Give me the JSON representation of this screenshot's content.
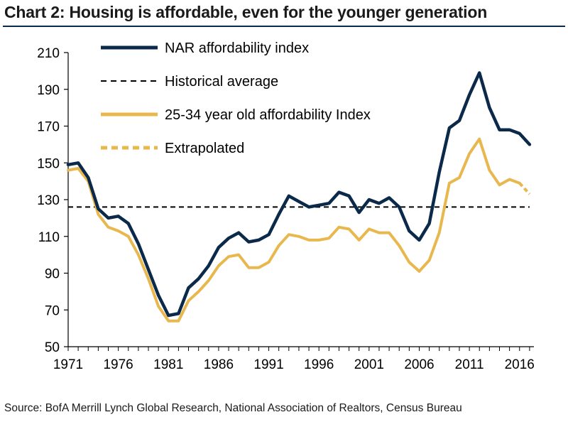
{
  "title": "Chart 2: Housing is affordable, even for the younger generation",
  "source": "Source: BofA Merrill Lynch Global Research, National Association of Realtors, Census Bureau",
  "colors": {
    "nar": "#0b2a4a",
    "young": "#e8b84f",
    "average": "#000000",
    "axis": "#000000"
  },
  "chart_data": {
    "type": "line",
    "xlabel": "",
    "ylabel": "",
    "xlim": [
      1971,
      2018
    ],
    "ylim": [
      50,
      210
    ],
    "yticks": [
      210,
      190,
      170,
      150,
      130,
      110,
      90,
      70,
      50
    ],
    "xticks": [
      1971,
      1976,
      1981,
      1986,
      1991,
      1996,
      2001,
      2006,
      2011,
      2016
    ],
    "grid": false,
    "legend_position": "top-left",
    "legend": [
      {
        "key": "nar",
        "label": "NAR affordability index",
        "style": "solid"
      },
      {
        "key": "average",
        "label": "Historical average",
        "style": "dashed"
      },
      {
        "key": "young",
        "label": "25-34 year old affordability Index",
        "style": "solid"
      },
      {
        "key": "extrapolated",
        "label": "Extrapolated",
        "style": "dashed"
      }
    ],
    "series": [
      {
        "name": "NAR affordability index",
        "key": "nar",
        "x": [
          1971,
          1972,
          1973,
          1974,
          1975,
          1976,
          1977,
          1978,
          1979,
          1980,
          1981,
          1982,
          1983,
          1984,
          1985,
          1986,
          1987,
          1988,
          1989,
          1990,
          1991,
          1992,
          1993,
          1994,
          1995,
          1996,
          1997,
          1998,
          1999,
          2000,
          2001,
          2002,
          2003,
          2004,
          2005,
          2006,
          2007,
          2008,
          2009,
          2010,
          2011,
          2012,
          2013,
          2014,
          2015,
          2016,
          2017
        ],
        "y": [
          149,
          150,
          142,
          125,
          120,
          121,
          117,
          106,
          92,
          78,
          67,
          68,
          82,
          87,
          94,
          104,
          109,
          112,
          107,
          108,
          111,
          122,
          132,
          129,
          126,
          127,
          128,
          134,
          132,
          123,
          130,
          128,
          131,
          126,
          113,
          108,
          117,
          145,
          169,
          173,
          187,
          199,
          180,
          168,
          168,
          166,
          160
        ]
      },
      {
        "name": "25-34 year old affordability Index",
        "key": "young",
        "x": [
          1971,
          1972,
          1973,
          1974,
          1975,
          1976,
          1977,
          1978,
          1979,
          1980,
          1981,
          1982,
          1983,
          1984,
          1985,
          1986,
          1987,
          1988,
          1989,
          1990,
          1991,
          1992,
          1993,
          1994,
          1995,
          1996,
          1997,
          1998,
          1999,
          2000,
          2001,
          2002,
          2003,
          2004,
          2005,
          2006,
          2007,
          2008,
          2009,
          2010,
          2011,
          2012,
          2013,
          2014,
          2015,
          2016
        ],
        "y": [
          146,
          147,
          140,
          122,
          115,
          113,
          110,
          100,
          87,
          72,
          64,
          64,
          75,
          80,
          86,
          94,
          99,
          100,
          93,
          93,
          96,
          105,
          111,
          110,
          108,
          108,
          109,
          115,
          114,
          108,
          114,
          112,
          112,
          105,
          96,
          91,
          97,
          112,
          139,
          142,
          155,
          163,
          146,
          138,
          141,
          139
        ]
      },
      {
        "name": "Extrapolated",
        "key": "extrapolated",
        "x": [
          2016,
          2017
        ],
        "y": [
          139,
          133
        ]
      },
      {
        "name": "Historical average",
        "key": "average",
        "x": [
          1971,
          2017
        ],
        "y": [
          126,
          126
        ]
      }
    ]
  }
}
